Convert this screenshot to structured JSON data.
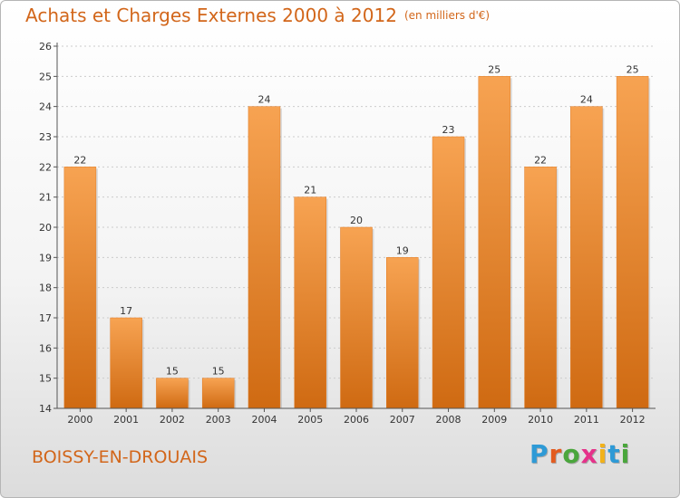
{
  "header": {
    "title": "Achats et Charges Externes 2000 à 2012",
    "unit": "(en milliers d'€)"
  },
  "footer": {
    "commune": "BOISSY-EN-DROUAIS",
    "logo_letters": [
      "P",
      "r",
      "o",
      "x",
      "i",
      "t",
      "i"
    ],
    "logo_colors": [
      "#2e9ad6",
      "#e35b1f",
      "#4aa63c",
      "#e5328a",
      "#f2b21a",
      "#2e9ad6",
      "#4aa63c"
    ]
  },
  "colors": {
    "bar_top": "#f7a352",
    "bar_bottom": "#cf6a12",
    "title": "#d2661a",
    "axis": "#555555",
    "grid": "#cccccc"
  },
  "chart_data": {
    "type": "bar",
    "title": "Achats et Charges Externes 2000 à 2012",
    "subtitle": "(en milliers d'€)",
    "xlabel": "",
    "ylabel": "",
    "categories": [
      "2000",
      "2001",
      "2002",
      "2003",
      "2004",
      "2005",
      "2006",
      "2007",
      "2008",
      "2009",
      "2010",
      "2011",
      "2012"
    ],
    "values": [
      22,
      17,
      15,
      15,
      24,
      21,
      20,
      19,
      23,
      25,
      22,
      24,
      25
    ],
    "ylim": [
      14,
      26
    ],
    "yticks": [
      14,
      15,
      16,
      17,
      18,
      19,
      20,
      21,
      22,
      23,
      24,
      25,
      26
    ],
    "grid": true,
    "data_labels": true
  }
}
